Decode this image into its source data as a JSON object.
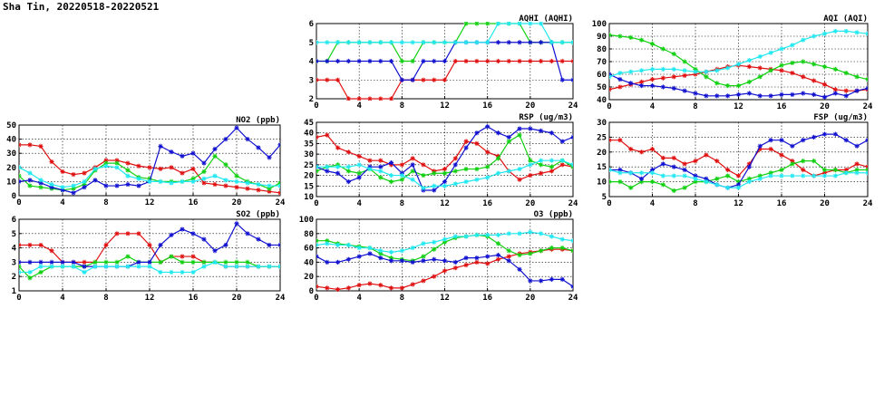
{
  "page": {
    "title": "Sha Tin, 20220518-20220521"
  },
  "colors": {
    "red": "#e01010",
    "green": "#10d010",
    "blue": "#1010d0",
    "cyan": "#20e8f0"
  },
  "chart_data": [
    {
      "id": "aqhi",
      "type": "line",
      "title": "AQHI (AQHI)",
      "xlim": [
        0,
        24
      ],
      "xticks": [
        0,
        4,
        8,
        12,
        16,
        20,
        24
      ],
      "ylim": [
        2,
        6
      ],
      "yticks": [
        2,
        3,
        4,
        5,
        6
      ],
      "grid": true,
      "series": [
        {
          "color": "red",
          "values": [
            3,
            3,
            3,
            2,
            2,
            2,
            2,
            2,
            3,
            3,
            3,
            3,
            3,
            4,
            4,
            4,
            4,
            4,
            4,
            4,
            4,
            4,
            4,
            4,
            4
          ]
        },
        {
          "color": "green",
          "values": [
            4,
            4,
            5,
            5,
            5,
            5,
            5,
            5,
            4,
            4,
            5,
            5,
            5,
            5,
            6,
            6,
            6,
            6,
            6,
            6,
            5,
            5,
            5,
            5,
            5
          ]
        },
        {
          "color": "blue",
          "values": [
            4,
            4,
            4,
            4,
            4,
            4,
            4,
            4,
            3,
            3,
            4,
            4,
            4,
            5,
            5,
            5,
            5,
            5,
            5,
            5,
            5,
            5,
            5,
            3,
            3
          ]
        },
        {
          "color": "cyan",
          "values": [
            5,
            5,
            5,
            5,
            5,
            5,
            5,
            5,
            5,
            5,
            5,
            5,
            5,
            5,
            5,
            5,
            5,
            6,
            6,
            6,
            6,
            6,
            5,
            5,
            5
          ]
        }
      ]
    },
    {
      "id": "aqi",
      "type": "line",
      "title": "AQI (AQI)",
      "xlim": [
        0,
        24
      ],
      "xticks": [
        0,
        4,
        8,
        12,
        16,
        20,
        24
      ],
      "ylim": [
        40,
        100
      ],
      "yticks": [
        40,
        50,
        60,
        70,
        80,
        90,
        100
      ],
      "grid": true,
      "series": [
        {
          "color": "red",
          "values": [
            48,
            50,
            52,
            54,
            56,
            57,
            58,
            59,
            60,
            62,
            64,
            66,
            67,
            66,
            65,
            64,
            63,
            61,
            58,
            55,
            52,
            48,
            47,
            47,
            48
          ]
        },
        {
          "color": "green",
          "values": [
            91,
            90,
            89,
            87,
            84,
            80,
            76,
            70,
            64,
            58,
            53,
            51,
            51,
            54,
            58,
            63,
            67,
            69,
            70,
            68,
            66,
            64,
            61,
            58,
            56
          ]
        },
        {
          "color": "blue",
          "values": [
            60,
            56,
            53,
            51,
            51,
            50,
            49,
            47,
            45,
            43,
            43,
            43,
            44,
            45,
            43,
            43,
            44,
            44,
            45,
            44,
            42,
            45,
            43,
            47,
            49
          ]
        },
        {
          "color": "cyan",
          "values": [
            58,
            61,
            62,
            63,
            64,
            64,
            64,
            63,
            62,
            62,
            63,
            65,
            68,
            71,
            74,
            77,
            80,
            83,
            87,
            90,
            92,
            94,
            94,
            93,
            92
          ]
        }
      ]
    },
    {
      "id": "no2",
      "type": "line",
      "title": "NO2 (ppb)",
      "xlim": [
        0,
        24
      ],
      "xticks": [
        0,
        4,
        8,
        12,
        16,
        20,
        24
      ],
      "ylim": [
        0,
        50
      ],
      "yticks": [
        0,
        10,
        20,
        30,
        40,
        50
      ],
      "grid": true,
      "series": [
        {
          "color": "red",
          "values": [
            36,
            36,
            35,
            24,
            17,
            15,
            16,
            20,
            25,
            25,
            23,
            21,
            20,
            19,
            20,
            16,
            19,
            9,
            8,
            7,
            6,
            5,
            4,
            3,
            2
          ]
        },
        {
          "color": "green",
          "values": [
            14,
            7,
            6,
            5,
            4,
            5,
            8,
            18,
            23,
            23,
            18,
            13,
            12,
            10,
            10,
            10,
            12,
            17,
            28,
            22,
            14,
            10,
            8,
            5,
            9
          ]
        },
        {
          "color": "blue",
          "values": [
            10,
            11,
            9,
            6,
            4,
            2,
            6,
            11,
            7,
            7,
            8,
            7,
            10,
            35,
            31,
            28,
            30,
            23,
            33,
            40,
            48,
            40,
            34,
            27,
            36
          ]
        },
        {
          "color": "cyan",
          "values": [
            20,
            16,
            11,
            8,
            6,
            7,
            10,
            19,
            21,
            20,
            14,
            12,
            10,
            10,
            9,
            10,
            10,
            12,
            14,
            11,
            10,
            9,
            8,
            7,
            7
          ]
        }
      ]
    },
    {
      "id": "rsp",
      "type": "line",
      "title": "RSP (ug/m3)",
      "xlim": [
        0,
        24
      ],
      "xticks": [
        0,
        4,
        8,
        12,
        16,
        20,
        24
      ],
      "ylim": [
        10,
        45
      ],
      "yticks": [
        10,
        15,
        20,
        25,
        30,
        35,
        40,
        45
      ],
      "grid": true,
      "series": [
        {
          "color": "red",
          "values": [
            38,
            39,
            33,
            31,
            29,
            27,
            27,
            25,
            25,
            28,
            25,
            22,
            23,
            28,
            36,
            35,
            31,
            29,
            22,
            18,
            20,
            21,
            22,
            25,
            24
          ]
        },
        {
          "color": "green",
          "values": [
            22,
            24,
            25,
            22,
            21,
            23,
            19,
            17,
            18,
            22,
            20,
            21,
            21,
            22,
            23,
            23,
            24,
            28,
            36,
            39,
            27,
            25,
            24,
            27,
            24
          ]
        },
        {
          "color": "blue",
          "values": [
            24,
            22,
            21,
            17,
            19,
            24,
            24,
            26,
            21,
            25,
            13,
            13,
            17,
            25,
            33,
            40,
            43,
            40,
            38,
            42,
            42,
            41,
            40,
            36,
            38
          ]
        },
        {
          "color": "cyan",
          "values": [
            24,
            24,
            24,
            24,
            25,
            23,
            22,
            20,
            20,
            18,
            14,
            15,
            15,
            16,
            17,
            18,
            19,
            21,
            22,
            23,
            25,
            27,
            27,
            27,
            25
          ]
        }
      ]
    },
    {
      "id": "fsp",
      "type": "line",
      "title": "FSP (ug/m3)",
      "xlim": [
        0,
        24
      ],
      "xticks": [
        0,
        4,
        8,
        12,
        16,
        20,
        24
      ],
      "ylim": [
        5,
        30
      ],
      "yticks": [
        5,
        10,
        15,
        20,
        25,
        30
      ],
      "grid": true,
      "series": [
        {
          "color": "red",
          "values": [
            24,
            24,
            21,
            20,
            21,
            18,
            18,
            16,
            17,
            19,
            17,
            14,
            12,
            16,
            21,
            21,
            19,
            17,
            14,
            12,
            13,
            14,
            14,
            16,
            15
          ]
        },
        {
          "color": "green",
          "values": [
            10,
            10,
            8,
            10,
            10,
            9,
            7,
            8,
            10,
            10,
            11,
            12,
            10,
            11,
            12,
            13,
            14,
            16,
            17,
            17,
            14,
            14,
            13,
            14,
            14
          ]
        },
        {
          "color": "blue",
          "values": [
            14,
            14,
            13,
            11,
            14,
            16,
            15,
            14,
            12,
            11,
            9,
            8,
            9,
            15,
            22,
            24,
            24,
            22,
            24,
            25,
            26,
            26,
            24,
            22,
            24
          ]
        },
        {
          "color": "cyan",
          "values": [
            14,
            13,
            13,
            13,
            13,
            12,
            12,
            12,
            11,
            10,
            9,
            8,
            8,
            10,
            11,
            12,
            12,
            12,
            12,
            12,
            12,
            12,
            13,
            13,
            13
          ]
        }
      ]
    },
    {
      "id": "so2",
      "type": "line",
      "title": "SO2 (ppb)",
      "xlim": [
        0,
        24
      ],
      "xticks": [
        0,
        4,
        8,
        12,
        16,
        20,
        24
      ],
      "ylim": [
        1,
        6
      ],
      "yticks": [
        1,
        2,
        3,
        4,
        5,
        6
      ],
      "grid": true,
      "series": [
        {
          "color": "red",
          "values": [
            4.2,
            4.2,
            4.2,
            3.8,
            3.0,
            3.0,
            3.0,
            3.0,
            4.2,
            5.0,
            5.0,
            5.0,
            4.2,
            3.0,
            3.4,
            3.4,
            3.4,
            3.0,
            3.0,
            2.7,
            2.7,
            2.7,
            2.7,
            2.7,
            2.7
          ]
        },
        {
          "color": "green",
          "values": [
            2.7,
            1.9,
            2.3,
            2.7,
            2.7,
            2.7,
            2.7,
            3.0,
            3.0,
            3.0,
            3.4,
            3.0,
            3.0,
            3.0,
            3.4,
            3.0,
            3.0,
            3.0,
            3.0,
            3.0,
            3.0,
            3.0,
            2.7,
            2.7,
            2.7
          ]
        },
        {
          "color": "blue",
          "values": [
            3.0,
            3.0,
            3.0,
            3.0,
            3.0,
            3.0,
            2.7,
            2.7,
            2.7,
            2.7,
            2.7,
            3.0,
            3.0,
            4.2,
            4.9,
            5.3,
            5.0,
            4.6,
            3.8,
            4.2,
            5.7,
            5.0,
            4.6,
            4.2,
            4.2
          ]
        },
        {
          "color": "cyan",
          "values": [
            2.3,
            2.3,
            2.7,
            2.7,
            2.7,
            2.7,
            2.3,
            2.7,
            2.7,
            2.7,
            2.7,
            2.7,
            2.7,
            2.3,
            2.3,
            2.3,
            2.3,
            2.7,
            3.0,
            2.7,
            2.7,
            2.7,
            2.7,
            2.7,
            2.7
          ]
        }
      ]
    },
    {
      "id": "o3",
      "type": "line",
      "title": "O3 (ppb)",
      "xlim": [
        0,
        24
      ],
      "xticks": [
        0,
        4,
        8,
        12,
        16,
        20,
        24
      ],
      "ylim": [
        0,
        100
      ],
      "yticks": [
        0,
        20,
        40,
        60,
        80,
        100
      ],
      "grid": true,
      "series": [
        {
          "color": "red",
          "values": [
            6,
            4,
            2,
            4,
            8,
            10,
            8,
            4,
            4,
            9,
            14,
            20,
            28,
            32,
            36,
            40,
            38,
            44,
            48,
            52,
            54,
            56,
            58,
            58,
            56
          ]
        },
        {
          "color": "green",
          "values": [
            70,
            70,
            66,
            64,
            62,
            60,
            52,
            46,
            44,
            42,
            48,
            58,
            68,
            74,
            76,
            78,
            76,
            66,
            56,
            50,
            52,
            56,
            60,
            60,
            56
          ]
        },
        {
          "color": "blue",
          "values": [
            48,
            40,
            40,
            44,
            48,
            52,
            46,
            42,
            42,
            40,
            42,
            44,
            42,
            40,
            46,
            46,
            48,
            50,
            42,
            30,
            14,
            14,
            16,
            16,
            6
          ]
        },
        {
          "color": "cyan",
          "values": [
            64,
            66,
            64,
            64,
            60,
            60,
            56,
            54,
            56,
            60,
            66,
            68,
            72,
            76,
            76,
            78,
            78,
            78,
            80,
            80,
            82,
            80,
            76,
            72,
            70
          ]
        }
      ]
    }
  ]
}
